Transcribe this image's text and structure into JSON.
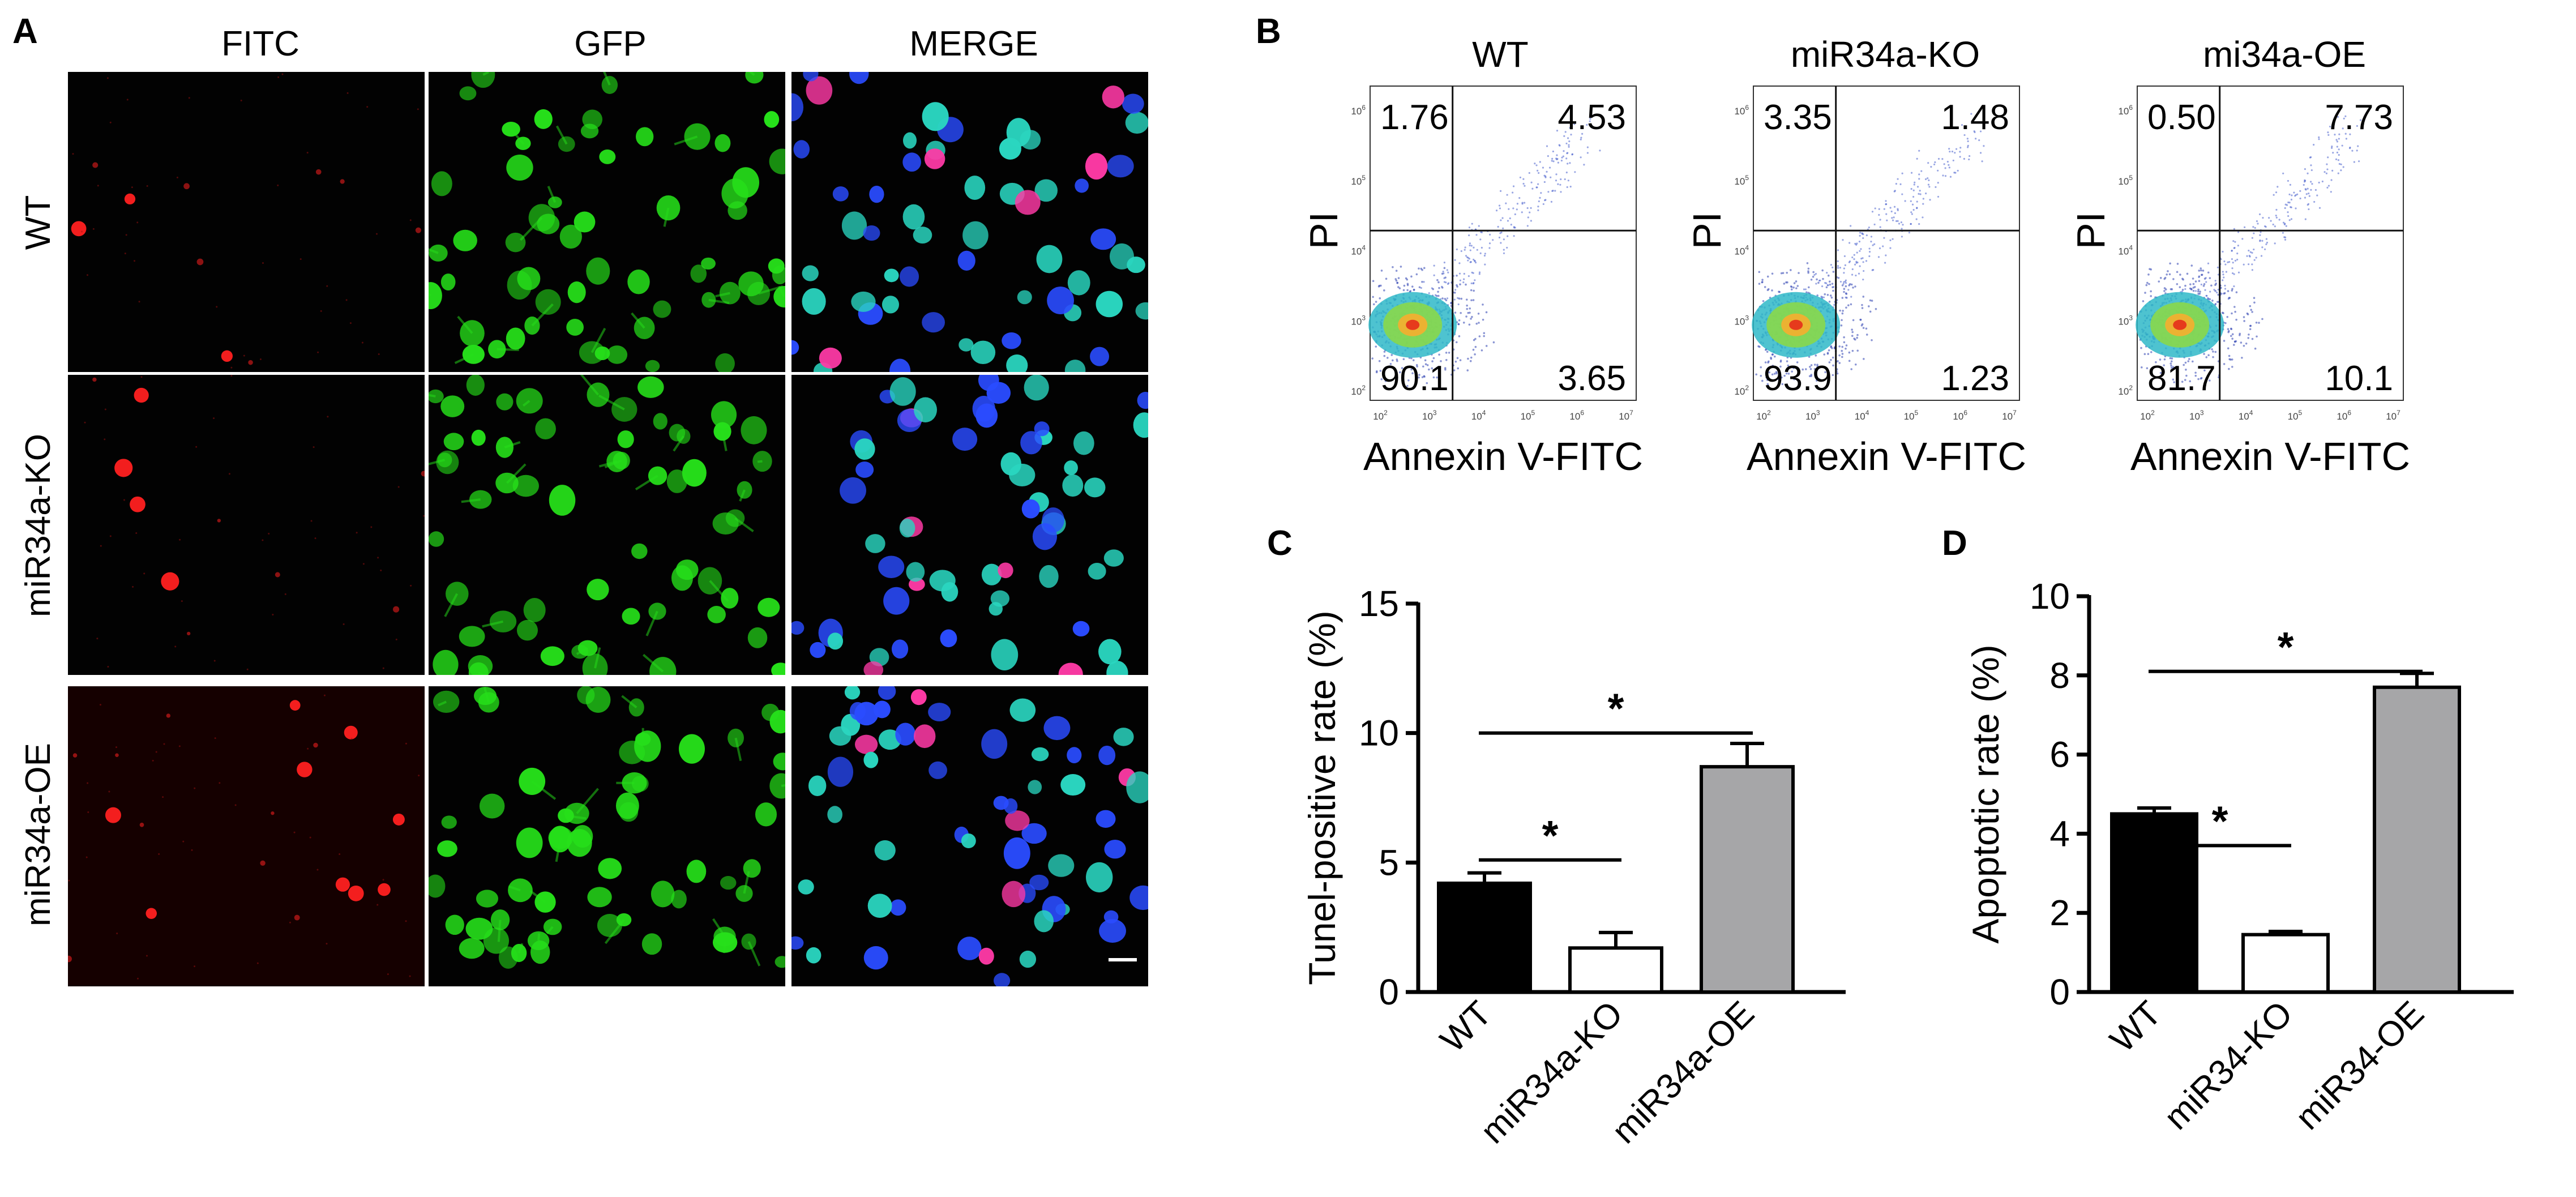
{
  "panels": {
    "A": {
      "letter": "A",
      "column_headers": [
        "FITC",
        "GFP",
        "MERGE"
      ],
      "row_labels": [
        "WT",
        "miR34a-KO",
        "miR34a-OE"
      ],
      "channel_colors": {
        "FITC": "#ff2020",
        "GFP": "#26e01a",
        "MERGE_nucleus": "#2a4cff",
        "MERGE_pink": "#ff3aa6"
      }
    },
    "B": {
      "letter": "B",
      "plots": [
        {
          "title": "WT",
          "quadrants": {
            "upper_left": "1.76",
            "upper_right": "4.53",
            "lower_left": "90.1",
            "lower_right": "3.65"
          }
        },
        {
          "title": "miR34a-KO",
          "quadrants": {
            "upper_left": "3.35",
            "upper_right": "1.48",
            "lower_left": "93.9",
            "lower_right": "1.23"
          }
        },
        {
          "title": "mi34a-OE",
          "quadrants": {
            "upper_left": "0.50",
            "upper_right": "7.73",
            "lower_left": "81.7",
            "lower_right": "10.1"
          }
        }
      ],
      "xlabel": "Annexin V-FITC",
      "ylabel": "PI",
      "axis_exponents": [
        "2",
        "3",
        "4",
        "5",
        "6",
        "7"
      ],
      "axis_base": "10"
    },
    "C": {
      "letter": "C",
      "significance_mark": "*"
    },
    "D": {
      "letter": "D",
      "significance_mark": "*"
    }
  },
  "chart_data": [
    {
      "type": "bar",
      "panel": "C",
      "categories": [
        "WT",
        "miR34a-KO",
        "miR34a-OE"
      ],
      "values": [
        4.2,
        1.7,
        8.7
      ],
      "errors": [
        0.4,
        0.6,
        0.9
      ],
      "bar_colors": [
        "#000000",
        "#ffffff",
        "#a6a6a8"
      ],
      "ylabel": "Tunel-positive rate (%)",
      "ylim": [
        0,
        15
      ],
      "yticks": [
        0,
        5,
        10,
        15
      ],
      "significance": [
        {
          "from": 0,
          "to": 1,
          "y": 5.1,
          "label": "*"
        },
        {
          "from": 0,
          "to": 2,
          "y": 10.0,
          "label": "*"
        }
      ]
    },
    {
      "type": "bar",
      "panel": "D",
      "categories": [
        "WT",
        "miR34-KO",
        "miR34-OE"
      ],
      "values": [
        4.5,
        1.45,
        7.7
      ],
      "errors": [
        0.15,
        0.08,
        0.35
      ],
      "bar_colors": [
        "#000000",
        "#ffffff",
        "#a6a6a8"
      ],
      "ylabel": "Apoptotic rate (%)",
      "ylim": [
        0,
        10
      ],
      "yticks": [
        0,
        2,
        4,
        6,
        8,
        10
      ],
      "significance": [
        {
          "from": 0,
          "to": 1,
          "y": 3.7,
          "label": "*"
        },
        {
          "from": 0,
          "to": 2,
          "y": 8.1,
          "label": "*"
        }
      ]
    }
  ]
}
